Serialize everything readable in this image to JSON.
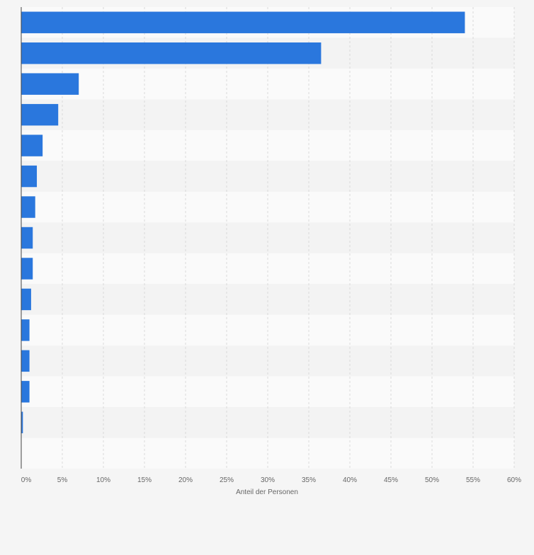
{
  "chart_data": {
    "type": "bar",
    "orientation": "horizontal",
    "title": "",
    "xlabel": "Anteil der Personen",
    "ylabel": "",
    "categories": [
      "",
      "",
      "",
      "",
      "",
      "",
      "",
      "",
      "",
      "",
      "",
      "",
      "",
      "",
      ""
    ],
    "values": [
      54,
      36.5,
      7,
      4.5,
      2.6,
      1.9,
      1.7,
      1.4,
      1.4,
      1.2,
      1.0,
      1.0,
      1.0,
      0.2,
      0
    ],
    "ticks": [
      0,
      5,
      10,
      15,
      20,
      25,
      30,
      35,
      40,
      45,
      50,
      55,
      60
    ],
    "tick_labels": [
      "0%",
      "5%",
      "10%",
      "15%",
      "20%",
      "25%",
      "30%",
      "35%",
      "40%",
      "45%",
      "50%",
      "55%",
      "60%"
    ],
    "xlim": [
      0,
      60
    ],
    "grid": true,
    "legend": "none",
    "colors": {
      "bar": "#2a77dd",
      "background": "#f5f5f5",
      "band_light": "#fafafa",
      "band_dark": "#f3f3f3",
      "grid": "#d9d9d9",
      "axis": "#444444",
      "text": "#666666"
    }
  }
}
